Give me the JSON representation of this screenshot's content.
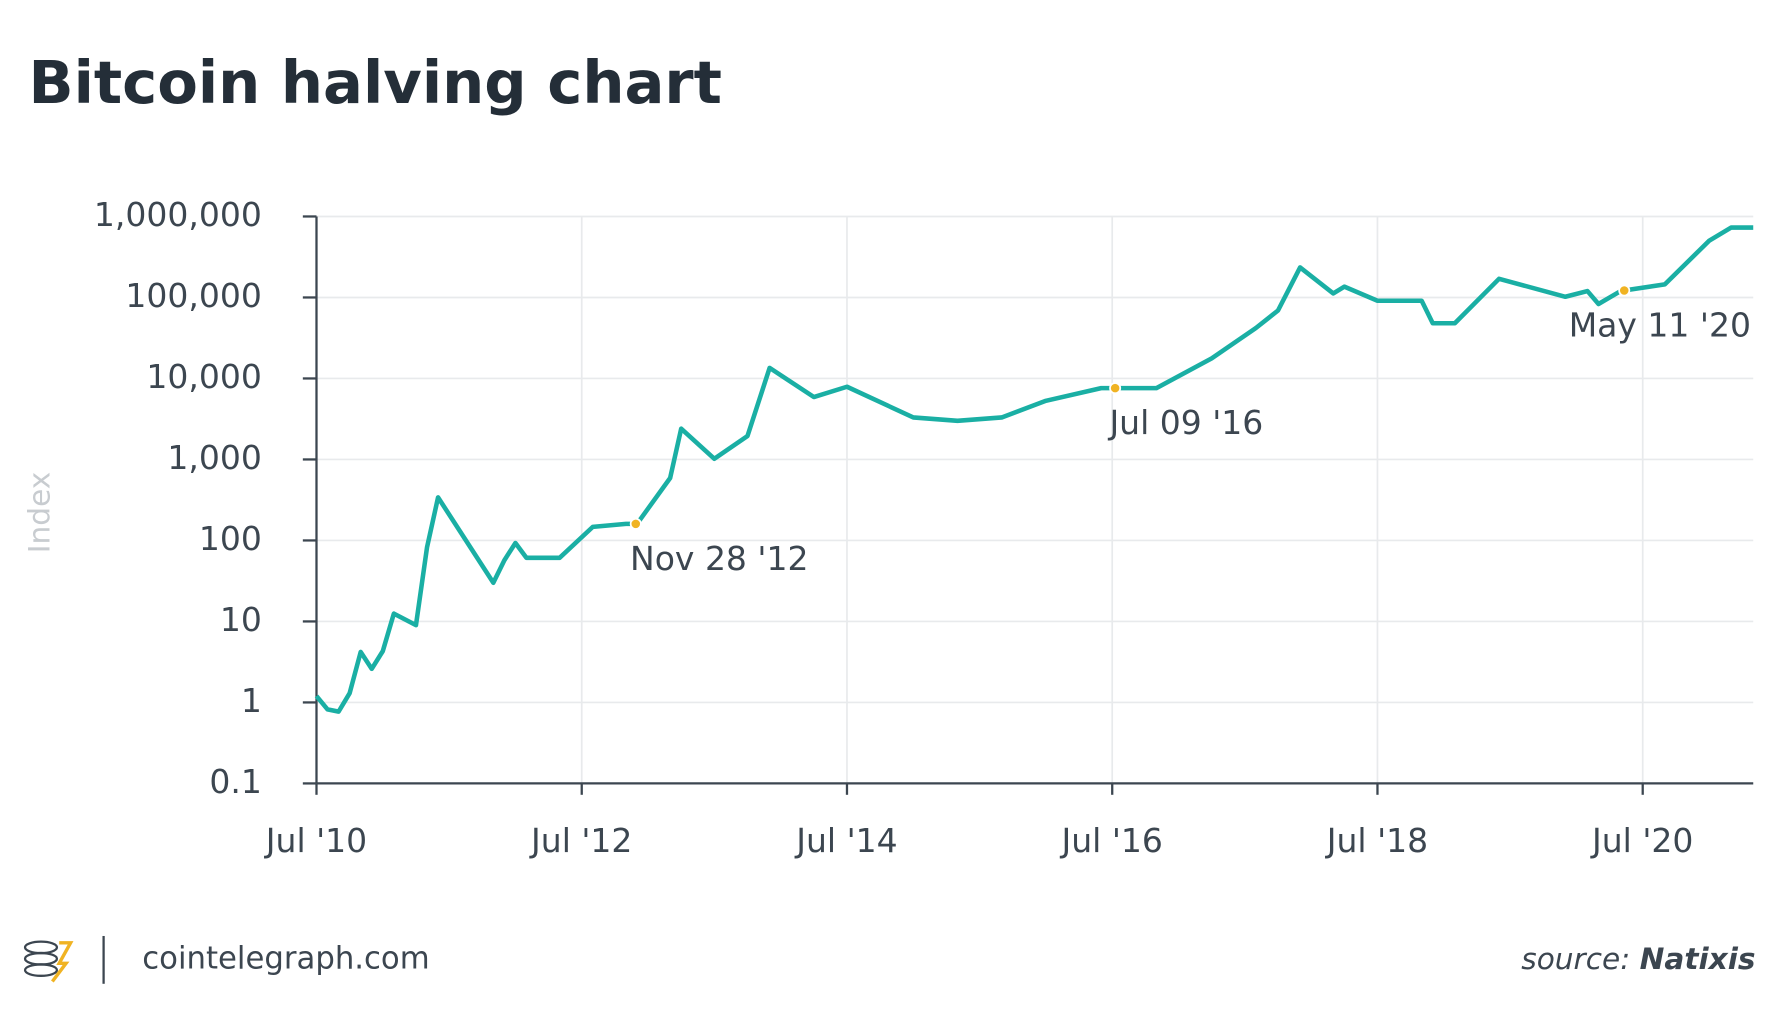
{
  "chart_data": {
    "type": "line",
    "title": "Bitcoin halving chart",
    "y_label": "Index",
    "log_scale": true,
    "grid": true,
    "xlim": [
      "2010-07",
      "2021-05"
    ],
    "xticks": [
      {
        "value": "2010-07",
        "label": "Jul '10"
      },
      {
        "value": "2012-07",
        "label": "Jul '12"
      },
      {
        "value": "2014-07",
        "label": "Jul '14"
      },
      {
        "value": "2016-07",
        "label": "Jul '16"
      },
      {
        "value": "2018-07",
        "label": "Jul '18"
      },
      {
        "value": "2020-07",
        "label": "Jul '20"
      }
    ],
    "ylim": [
      0.1,
      1000000
    ],
    "yticks": [
      0.1,
      1,
      10,
      100,
      {
        "value": 1000,
        "label": "1,000"
      },
      {
        "value": 10000,
        "label": "10,000"
      },
      {
        "value": 100000,
        "label": "100,000"
      },
      {
        "value": 1000000,
        "label": "1,000,000"
      }
    ],
    "x": [
      "2010-07",
      "2010-08",
      "2010-09",
      "2010-10",
      "2010-11",
      "2010-12",
      "2011-01",
      "2011-02",
      "2011-04",
      "2011-05",
      "2011-06",
      "2011-11",
      "2011-12",
      "2012-01",
      "2012-02",
      "2012-05",
      "2012-08",
      "2012-11",
      "2012-12",
      "2013-03",
      "2013-04",
      "2013-07",
      "2013-10",
      "2013-12",
      "2014-04",
      "2014-07",
      "2015-01",
      "2015-05",
      "2015-09",
      "2016-01",
      "2016-06",
      "2016-11",
      "2017-04",
      "2017-08",
      "2017-10",
      "2017-12",
      "2018-03",
      "2018-04",
      "2018-07",
      "2018-11",
      "2018-12",
      "2019-02",
      "2019-06",
      "2019-12",
      "2020-02",
      "2020-03",
      "2020-05",
      "2020-09",
      "2021-01",
      "2021-03",
      "2021-05"
    ],
    "series": [
      {
        "name": "Index",
        "color": "#1aafa4",
        "values": [
          1.2,
          0.82,
          0.77,
          1.3,
          4.2,
          2.6,
          4.3,
          12.5,
          9,
          82,
          340,
          30,
          57,
          93,
          61,
          61,
          147,
          160,
          160,
          590,
          2400,
          1020,
          1950,
          13500,
          5900,
          7900,
          3300,
          3000,
          3300,
          5300,
          7600,
          7600,
          17700,
          42000,
          69000,
          235000,
          112000,
          136000,
          91000,
          91000,
          48000,
          48000,
          170000,
          102000,
          120000,
          83000,
          120000,
          145000,
          500000,
          730000,
          730000
        ]
      }
    ],
    "annotations": [
      {
        "x": "2012-11-28",
        "label": "Nov 28 '12",
        "color": "#f0b323"
      },
      {
        "x": "2016-07-09",
        "label": "Jul 09 '16",
        "color": "#f0b323"
      },
      {
        "x": "2020-05-11",
        "label": "May 11 '20",
        "color": "#f0b323"
      }
    ],
    "footer": "cointelegraph.com",
    "source_label": "source:",
    "source": "Natixis"
  }
}
